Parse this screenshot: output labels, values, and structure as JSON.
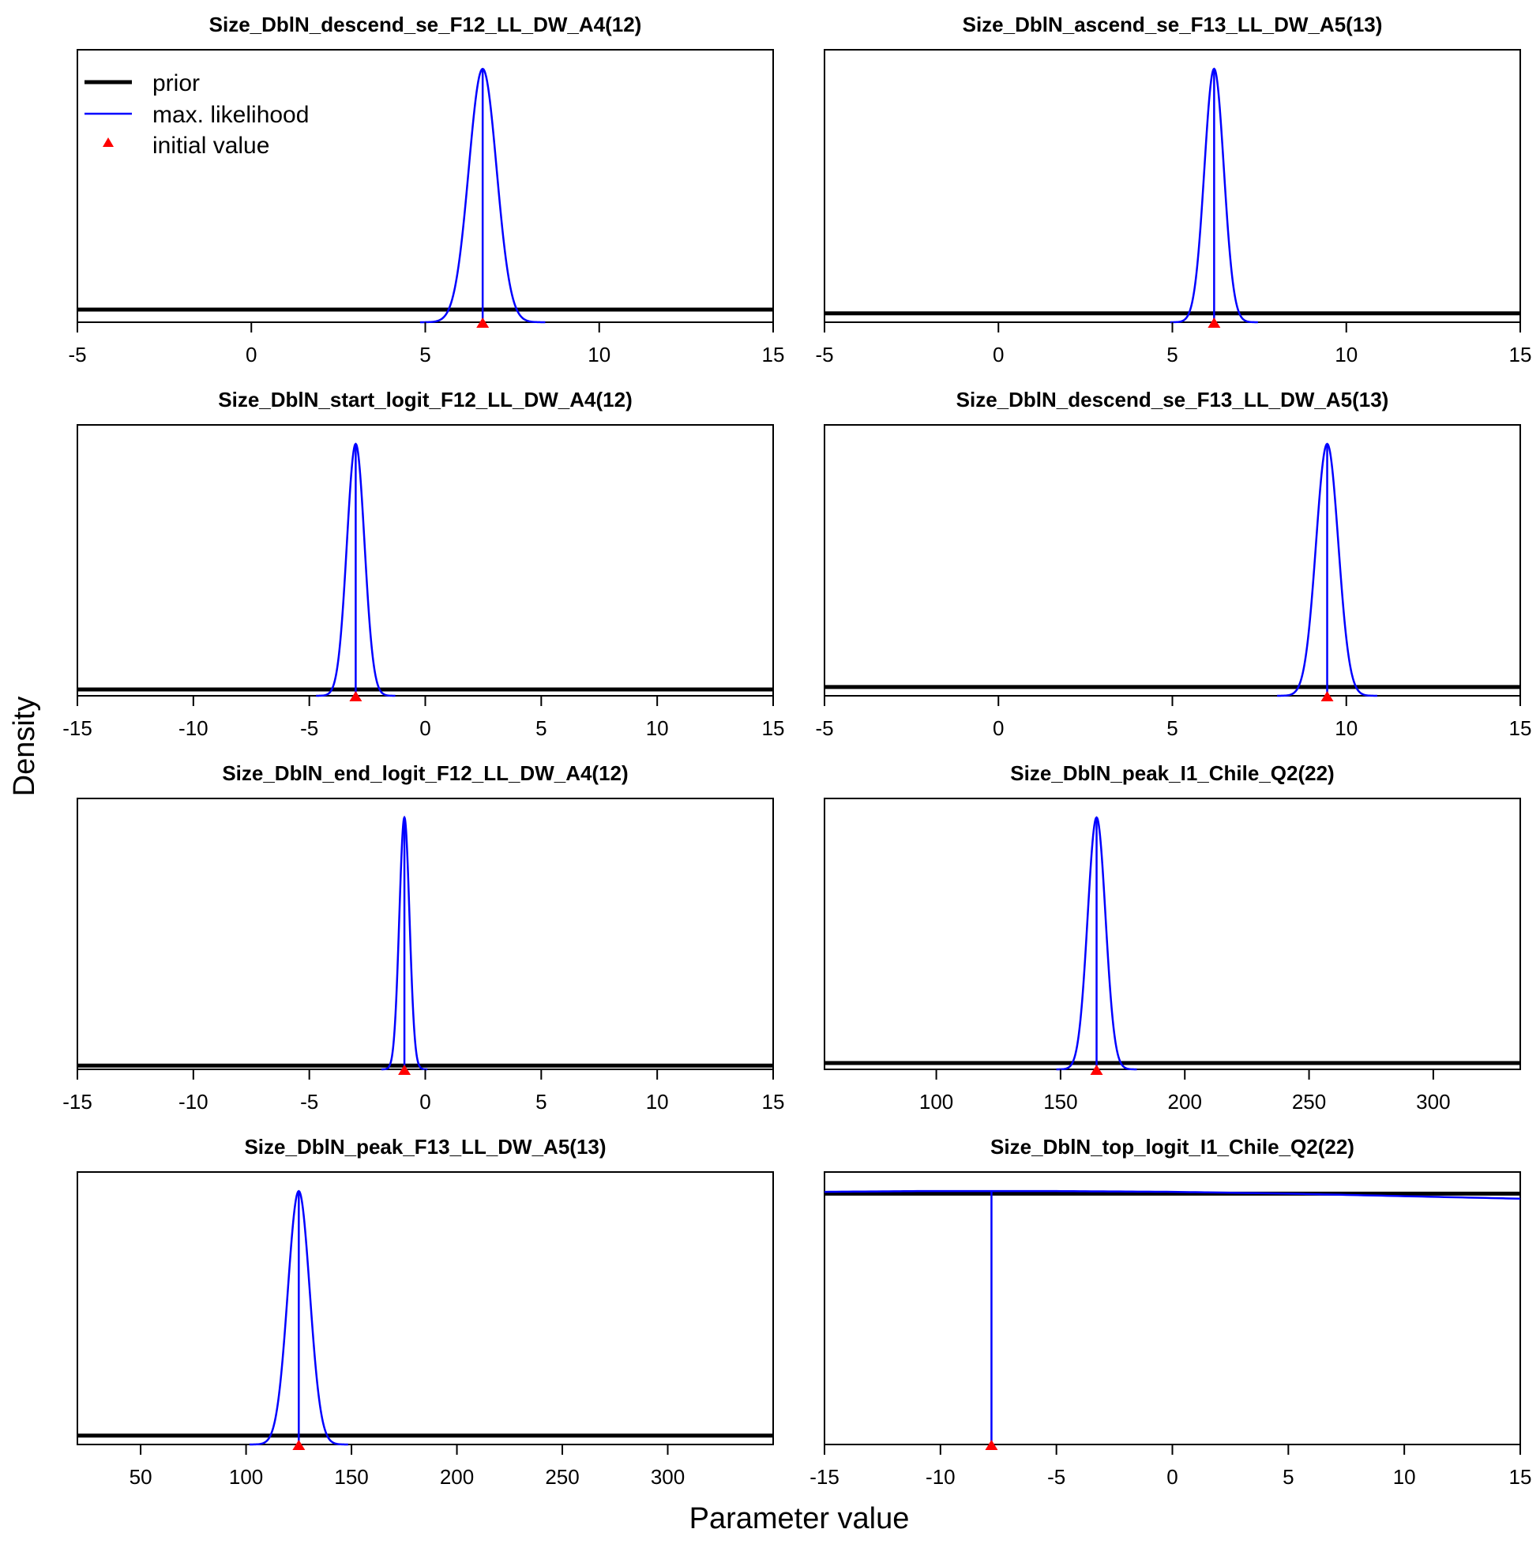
{
  "figure": {
    "ylabel": "Density",
    "xlabel": "Parameter value",
    "legend": {
      "placement": "top-left of first panel",
      "items": [
        {
          "label": "prior",
          "style": "thick-line",
          "color": "#000000"
        },
        {
          "label": "max. likelihood",
          "style": "thin-line",
          "color": "#0000ff"
        },
        {
          "label": "initial value",
          "style": "triangle",
          "color": "#ff0000"
        }
      ]
    },
    "colors": {
      "prior": "#000000",
      "mle": "#0000ff",
      "initial": "#ff0000"
    }
  },
  "chart_data": [
    {
      "type": "line",
      "title": "Size_DblN_descend_se_F12_LL_DW_A4(12)",
      "xlim": [
        -5,
        15
      ],
      "xticks": [
        -5,
        0,
        5,
        10,
        15
      ],
      "mle": {
        "mean": 6.65,
        "sd": 0.4
      },
      "prior_level": 0.05,
      "initial": 6.65
    },
    {
      "type": "line",
      "title": "Size_DblN_ascend_se_F13_LL_DW_A5(13)",
      "xlim": [
        -5,
        15
      ],
      "xticks": [
        -5,
        0,
        5,
        10,
        15
      ],
      "mle": {
        "mean": 6.2,
        "sd": 0.28
      },
      "prior_level": 0.035,
      "initial": 6.2
    },
    {
      "type": "line",
      "title": "Size_DblN_start_logit_F12_LL_DW_A4(12)",
      "xlim": [
        -15,
        15
      ],
      "xticks": [
        -15,
        -10,
        -5,
        0,
        5,
        10,
        15
      ],
      "mle": {
        "mean": -3.0,
        "sd": 0.38
      },
      "prior_level": 0.025,
      "initial": -3.0
    },
    {
      "type": "line",
      "title": "Size_DblN_descend_se_F13_LL_DW_A5(13)",
      "xlim": [
        -5,
        15
      ],
      "xticks": [
        -5,
        0,
        5,
        10,
        15
      ],
      "mle": {
        "mean": 9.45,
        "sd": 0.32
      },
      "prior_level": 0.035,
      "initial": 9.45
    },
    {
      "type": "line",
      "title": "Size_DblN_end_logit_F12_LL_DW_A4(12)",
      "xlim": [
        -15,
        15
      ],
      "xticks": [
        -15,
        -10,
        -5,
        0,
        5,
        10,
        15
      ],
      "mle": {
        "mean": -0.9,
        "sd": 0.22
      },
      "prior_level": 0.015,
      "initial": -0.9
    },
    {
      "type": "line",
      "title": "Size_DblN_peak_I1_Chile_Q2(22)",
      "xlim": [
        55,
        335
      ],
      "xticks": [
        100,
        150,
        200,
        250,
        300
      ],
      "mle": {
        "mean": 164.5,
        "sd": 3.6
      },
      "prior_level": 0.025,
      "initial": 164.5
    },
    {
      "type": "line",
      "title": "Size_DblN_peak_F13_LL_DW_A5(13)",
      "xlim": [
        20,
        350
      ],
      "xticks": [
        50,
        100,
        150,
        200,
        250,
        300
      ],
      "mle": {
        "mean": 125,
        "sd": 5.2
      },
      "prior_level": 0.035,
      "initial": 125
    },
    {
      "type": "line",
      "title": "Size_DblN_top_logit_I1_Chile_Q2(22)",
      "xlim": [
        -15,
        15
      ],
      "xticks": [
        -15,
        -10,
        -5,
        0,
        5,
        10,
        15
      ],
      "mle_curve": {
        "x": [
          -15,
          -11,
          -5,
          0,
          5,
          10,
          15
        ],
        "y": [
          0.997,
          1.0,
          1.0,
          0.997,
          0.99,
          0.98,
          0.97
        ]
      },
      "mle_point": -7.8,
      "prior_level": 0.99,
      "initial": -7.8
    }
  ]
}
